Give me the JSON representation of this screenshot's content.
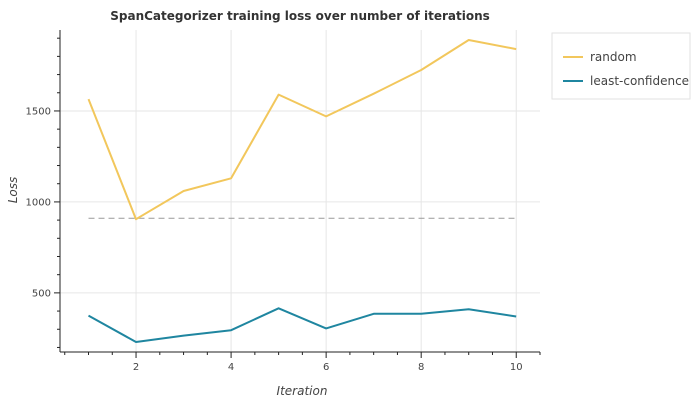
{
  "chart_data": {
    "type": "line",
    "title": "SpanCategorizer training loss over number of iterations",
    "xlabel": "Iteration",
    "ylabel": "Loss",
    "xlim": [
      0.4,
      10.5
    ],
    "ylim": [
      175,
      1945
    ],
    "x_ticks": [
      2,
      4,
      6,
      8,
      10
    ],
    "y_ticks": [
      500,
      1000,
      1500
    ],
    "grid": true,
    "legend_position": "top-right-outside",
    "reference_line": {
      "y": 910,
      "style": "dashed",
      "color": "#999999"
    },
    "x": [
      1,
      2,
      3,
      4,
      5,
      6,
      7,
      8,
      9,
      10
    ],
    "series": [
      {
        "name": "random",
        "color": "#f2c75c",
        "values": [
          1565,
          905,
          1060,
          1130,
          1590,
          1470,
          1595,
          1725,
          1890,
          1840
        ]
      },
      {
        "name": "least-confidence",
        "color": "#1f86a0",
        "values": [
          375,
          230,
          265,
          295,
          415,
          305,
          385,
          385,
          410,
          370
        ]
      }
    ]
  }
}
